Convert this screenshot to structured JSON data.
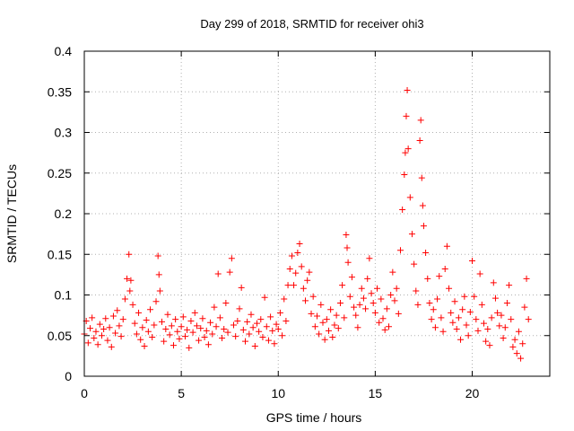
{
  "chart_data": {
    "type": "scatter",
    "title": "Day 299 of 2018, SRMTID for receiver ohi3",
    "xlabel": "GPS time / hours",
    "ylabel": "SRMTID / TECUs",
    "xlim": [
      0,
      24
    ],
    "ylim": [
      0,
      0.4
    ],
    "x_ticks": [
      "0",
      "5",
      "10",
      "15",
      "20"
    ],
    "y_ticks": [
      "0",
      "0.05",
      "0.1",
      "0.15",
      "0.2",
      "0.25",
      "0.3",
      "0.35",
      "0.4"
    ],
    "x_tick_values": [
      0,
      5,
      10,
      15,
      20
    ],
    "y_tick_values": [
      0,
      0.05,
      0.1,
      0.15,
      0.2,
      0.25,
      0.3,
      0.35,
      0.4
    ],
    "grid": true,
    "marker": "+",
    "marker_color": "#ff0000",
    "series": [
      {
        "name": "SRMTID",
        "points": [
          [
            0.0,
            0.052
          ],
          [
            0.1,
            0.068
          ],
          [
            0.2,
            0.041
          ],
          [
            0.3,
            0.059
          ],
          [
            0.4,
            0.072
          ],
          [
            0.5,
            0.047
          ],
          [
            0.6,
            0.055
          ],
          [
            0.7,
            0.039
          ],
          [
            0.8,
            0.064
          ],
          [
            0.9,
            0.05
          ],
          [
            1.0,
            0.058
          ],
          [
            1.1,
            0.071
          ],
          [
            1.2,
            0.044
          ],
          [
            1.3,
            0.06
          ],
          [
            1.4,
            0.036
          ],
          [
            1.5,
            0.074
          ],
          [
            1.6,
            0.053
          ],
          [
            1.7,
            0.081
          ],
          [
            1.8,
            0.062
          ],
          [
            1.9,
            0.049
          ],
          [
            2.0,
            0.07
          ],
          [
            2.1,
            0.095
          ],
          [
            2.2,
            0.12
          ],
          [
            2.3,
            0.15
          ],
          [
            2.35,
            0.105
          ],
          [
            2.4,
            0.118
          ],
          [
            2.5,
            0.088
          ],
          [
            2.6,
            0.065
          ],
          [
            2.7,
            0.052
          ],
          [
            2.8,
            0.078
          ],
          [
            2.9,
            0.045
          ],
          [
            3.0,
            0.06
          ],
          [
            3.1,
            0.037
          ],
          [
            3.2,
            0.069
          ],
          [
            3.3,
            0.055
          ],
          [
            3.4,
            0.082
          ],
          [
            3.5,
            0.048
          ],
          [
            3.6,
            0.063
          ],
          [
            3.7,
            0.092
          ],
          [
            3.8,
            0.148
          ],
          [
            3.85,
            0.125
          ],
          [
            3.9,
            0.105
          ],
          [
            4.0,
            0.067
          ],
          [
            4.1,
            0.043
          ],
          [
            4.2,
            0.058
          ],
          [
            4.3,
            0.076
          ],
          [
            4.4,
            0.051
          ],
          [
            4.5,
            0.062
          ],
          [
            4.6,
            0.038
          ],
          [
            4.7,
            0.07
          ],
          [
            4.8,
            0.055
          ],
          [
            4.9,
            0.046
          ],
          [
            5.0,
            0.061
          ],
          [
            5.1,
            0.073
          ],
          [
            5.2,
            0.049
          ],
          [
            5.3,
            0.057
          ],
          [
            5.4,
            0.035
          ],
          [
            5.5,
            0.068
          ],
          [
            5.6,
            0.054
          ],
          [
            5.7,
            0.078
          ],
          [
            5.8,
            0.062
          ],
          [
            5.9,
            0.044
          ],
          [
            6.0,
            0.059
          ],
          [
            6.1,
            0.071
          ],
          [
            6.2,
            0.048
          ],
          [
            6.3,
            0.056
          ],
          [
            6.4,
            0.039
          ],
          [
            6.5,
            0.066
          ],
          [
            6.6,
            0.052
          ],
          [
            6.7,
            0.085
          ],
          [
            6.8,
            0.061
          ],
          [
            6.9,
            0.126
          ],
          [
            7.0,
            0.072
          ],
          [
            7.1,
            0.047
          ],
          [
            7.2,
            0.058
          ],
          [
            7.3,
            0.09
          ],
          [
            7.4,
            0.054
          ],
          [
            7.5,
            0.128
          ],
          [
            7.6,
            0.145
          ],
          [
            7.7,
            0.063
          ],
          [
            7.8,
            0.049
          ],
          [
            7.9,
            0.068
          ],
          [
            8.0,
            0.083
          ],
          [
            8.1,
            0.109
          ],
          [
            8.2,
            0.057
          ],
          [
            8.3,
            0.043
          ],
          [
            8.4,
            0.067
          ],
          [
            8.5,
            0.052
          ],
          [
            8.6,
            0.076
          ],
          [
            8.7,
            0.06
          ],
          [
            8.8,
            0.037
          ],
          [
            8.9,
            0.065
          ],
          [
            9.0,
            0.055
          ],
          [
            9.1,
            0.07
          ],
          [
            9.2,
            0.048
          ],
          [
            9.3,
            0.097
          ],
          [
            9.4,
            0.061
          ],
          [
            9.5,
            0.044
          ],
          [
            9.6,
            0.073
          ],
          [
            9.7,
            0.056
          ],
          [
            9.8,
            0.04
          ],
          [
            9.9,
            0.064
          ],
          [
            10.0,
            0.058
          ],
          [
            10.1,
            0.078
          ],
          [
            10.2,
            0.05
          ],
          [
            10.3,
            0.095
          ],
          [
            10.4,
            0.068
          ],
          [
            10.5,
            0.112
          ],
          [
            10.6,
            0.132
          ],
          [
            10.7,
            0.148
          ],
          [
            10.8,
            0.112
          ],
          [
            10.9,
            0.127
          ],
          [
            11.0,
            0.152
          ],
          [
            11.1,
            0.163
          ],
          [
            11.2,
            0.135
          ],
          [
            11.3,
            0.108
          ],
          [
            11.4,
            0.093
          ],
          [
            11.5,
            0.118
          ],
          [
            11.6,
            0.128
          ],
          [
            11.7,
            0.077
          ],
          [
            11.8,
            0.098
          ],
          [
            11.9,
            0.061
          ],
          [
            12.0,
            0.074
          ],
          [
            12.1,
            0.052
          ],
          [
            12.2,
            0.088
          ],
          [
            12.3,
            0.066
          ],
          [
            12.4,
            0.045
          ],
          [
            12.5,
            0.07
          ],
          [
            12.6,
            0.056
          ],
          [
            12.7,
            0.082
          ],
          [
            12.8,
            0.048
          ],
          [
            12.9,
            0.063
          ],
          [
            13.0,
            0.075
          ],
          [
            13.1,
            0.059
          ],
          [
            13.2,
            0.09
          ],
          [
            13.3,
            0.112
          ],
          [
            13.4,
            0.072
          ],
          [
            13.5,
            0.174
          ],
          [
            13.55,
            0.158
          ],
          [
            13.6,
            0.14
          ],
          [
            13.7,
            0.098
          ],
          [
            13.8,
            0.122
          ],
          [
            13.9,
            0.085
          ],
          [
            14.0,
            0.075
          ],
          [
            14.1,
            0.06
          ],
          [
            14.2,
            0.088
          ],
          [
            14.3,
            0.108
          ],
          [
            14.4,
            0.096
          ],
          [
            14.5,
            0.083
          ],
          [
            14.6,
            0.12
          ],
          [
            14.7,
            0.145
          ],
          [
            14.8,
            0.102
          ],
          [
            14.9,
            0.09
          ],
          [
            15.0,
            0.078
          ],
          [
            15.1,
            0.108
          ],
          [
            15.2,
            0.066
          ],
          [
            15.3,
            0.095
          ],
          [
            15.4,
            0.071
          ],
          [
            15.5,
            0.057
          ],
          [
            15.6,
            0.083
          ],
          [
            15.7,
            0.061
          ],
          [
            15.8,
            0.1
          ],
          [
            15.9,
            0.128
          ],
          [
            16.0,
            0.093
          ],
          [
            16.1,
            0.108
          ],
          [
            16.2,
            0.077
          ],
          [
            16.3,
            0.155
          ],
          [
            16.4,
            0.205
          ],
          [
            16.5,
            0.248
          ],
          [
            16.55,
            0.275
          ],
          [
            16.6,
            0.32
          ],
          [
            16.65,
            0.352
          ],
          [
            16.7,
            0.28
          ],
          [
            16.8,
            0.22
          ],
          [
            16.9,
            0.175
          ],
          [
            17.0,
            0.138
          ],
          [
            17.1,
            0.105
          ],
          [
            17.2,
            0.088
          ],
          [
            17.3,
            0.29
          ],
          [
            17.35,
            0.315
          ],
          [
            17.4,
            0.244
          ],
          [
            17.45,
            0.21
          ],
          [
            17.5,
            0.185
          ],
          [
            17.6,
            0.152
          ],
          [
            17.7,
            0.12
          ],
          [
            17.8,
            0.09
          ],
          [
            17.9,
            0.07
          ],
          [
            18.0,
            0.082
          ],
          [
            18.1,
            0.06
          ],
          [
            18.2,
            0.095
          ],
          [
            18.3,
            0.123
          ],
          [
            18.4,
            0.072
          ],
          [
            18.5,
            0.055
          ],
          [
            18.6,
            0.132
          ],
          [
            18.7,
            0.16
          ],
          [
            18.8,
            0.108
          ],
          [
            18.9,
            0.078
          ],
          [
            19.0,
            0.066
          ],
          [
            19.1,
            0.092
          ],
          [
            19.2,
            0.058
          ],
          [
            19.3,
            0.072
          ],
          [
            19.4,
            0.045
          ],
          [
            19.5,
            0.082
          ],
          [
            19.6,
            0.098
          ],
          [
            19.7,
            0.063
          ],
          [
            19.8,
            0.05
          ],
          [
            19.9,
            0.079
          ],
          [
            20.0,
            0.142
          ],
          [
            20.1,
            0.098
          ],
          [
            20.2,
            0.07
          ],
          [
            20.3,
            0.056
          ],
          [
            20.4,
            0.126
          ],
          [
            20.5,
            0.088
          ],
          [
            20.6,
            0.065
          ],
          [
            20.7,
            0.043
          ],
          [
            20.8,
            0.058
          ],
          [
            20.9,
            0.038
          ],
          [
            21.0,
            0.072
          ],
          [
            21.1,
            0.115
          ],
          [
            21.2,
            0.096
          ],
          [
            21.3,
            0.078
          ],
          [
            21.4,
            0.062
          ],
          [
            21.5,
            0.075
          ],
          [
            21.6,
            0.047
          ],
          [
            21.7,
            0.06
          ],
          [
            21.8,
            0.09
          ],
          [
            21.9,
            0.112
          ],
          [
            22.0,
            0.07
          ],
          [
            22.1,
            0.036
          ],
          [
            22.2,
            0.045
          ],
          [
            22.3,
            0.028
          ],
          [
            22.4,
            0.055
          ],
          [
            22.5,
            0.022
          ],
          [
            22.6,
            0.04
          ],
          [
            22.7,
            0.085
          ],
          [
            22.8,
            0.12
          ],
          [
            22.9,
            0.07
          ]
        ]
      }
    ]
  }
}
